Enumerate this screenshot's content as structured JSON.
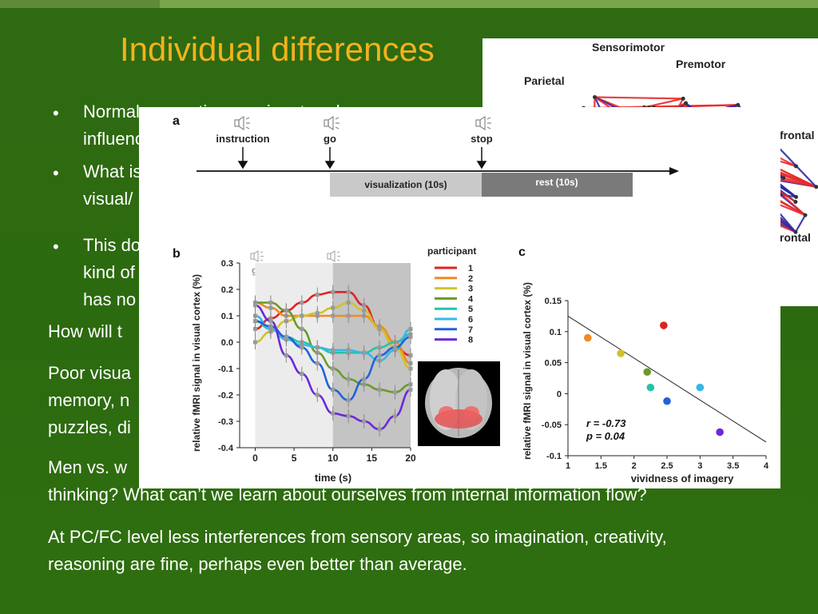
{
  "slide": {
    "title": "Individual differences",
    "bullets": [
      {
        "line1": "Normal perception requires top-down",
        "line2": "influences"
      },
      {
        "line1": "What is",
        "line2": "visual/"
      },
      {
        "line1": "This do",
        "line2": "kind of",
        "line3": "has no"
      }
    ],
    "paragraphs": [
      {
        "lines": [
          "How will t"
        ]
      },
      {
        "lines": [
          "Poor visua",
          "memory, n",
          "puzzles, di"
        ]
      },
      {
        "lines": [
          "Men vs. w",
          "thinking? What can’t we learn about ourselves from internal information flow?"
        ]
      },
      {
        "lines": [
          "At PC/FC level less interferences from sensory areas, so imagination, creativity,",
          "reasoning are fine, perhaps even better than average."
        ]
      }
    ]
  },
  "network_figure": {
    "labels": [
      "Sensorimotor",
      "Premotor",
      "Parietal",
      "frontal",
      "rontal"
    ],
    "colors": {
      "red": "#e82a2a",
      "blue": "#2a2aa8"
    }
  },
  "panel_a": {
    "label": "a",
    "events": [
      "instruction",
      "go",
      "stop"
    ],
    "bars": [
      "visualization (10s)",
      "rest (10s)"
    ]
  },
  "panel_b": {
    "label": "b",
    "ylabel": "relative fMRI signal in visual cortex (%)",
    "xlabel": "time (s)",
    "go_label": "go",
    "stop_label": "stop",
    "legend_title": "participant"
  },
  "panel_c": {
    "label": "c",
    "ylabel": "relative fMRI signal in visual cortex (%)",
    "xlabel": "vividness of imagery",
    "r_text": "r = -0.73",
    "p_text": "p = 0.04"
  },
  "chart_data": [
    {
      "type": "line",
      "x": [
        0,
        2,
        4,
        6,
        8,
        10,
        12,
        14,
        16,
        18,
        20
      ],
      "xlim": [
        -2,
        20
      ],
      "ylim": [
        -0.4,
        0.3
      ],
      "xticks": [
        0,
        5,
        10,
        15,
        20
      ],
      "yticks": [
        "0.3",
        "0.2",
        "0.1",
        "0.0",
        "-0.1",
        "-0.2",
        "-0.3",
        "-0.4"
      ],
      "series": [
        {
          "name": "1",
          "color": "#e02222",
          "values": [
            0.05,
            0.09,
            0.12,
            0.15,
            0.18,
            0.19,
            0.19,
            0.14,
            0.05,
            -0.02,
            -0.05
          ]
        },
        {
          "name": "2",
          "color": "#f08a22",
          "values": [
            0.15,
            0.13,
            0.1,
            0.1,
            0.1,
            0.1,
            0.1,
            0.1,
            0.06,
            0.0,
            -0.08
          ]
        },
        {
          "name": "3",
          "color": "#cfc32a",
          "values": [
            0.0,
            0.04,
            0.08,
            0.1,
            0.11,
            0.13,
            0.15,
            0.12,
            0.05,
            -0.02,
            -0.1
          ]
        },
        {
          "name": "4",
          "color": "#6a9a28",
          "values": [
            0.15,
            0.15,
            0.12,
            0.05,
            -0.04,
            -0.1,
            -0.14,
            -0.16,
            -0.18,
            -0.19,
            -0.16
          ]
        },
        {
          "name": "5",
          "color": "#22c4a8",
          "values": [
            0.08,
            0.05,
            0.02,
            0.0,
            -0.02,
            -0.04,
            -0.04,
            -0.04,
            -0.02,
            0.0,
            0.03
          ]
        },
        {
          "name": "6",
          "color": "#33b8e8",
          "values": [
            0.1,
            0.05,
            0.01,
            -0.01,
            -0.02,
            -0.03,
            -0.03,
            -0.04,
            -0.07,
            -0.03,
            0.05
          ]
        },
        {
          "name": "7",
          "color": "#2262d8",
          "values": [
            0.08,
            0.06,
            0.02,
            -0.02,
            -0.08,
            -0.18,
            -0.22,
            -0.14,
            -0.05,
            -0.02,
            0.02
          ]
        },
        {
          "name": "8",
          "color": "#6a2ad8",
          "values": [
            0.14,
            0.08,
            -0.05,
            -0.12,
            -0.2,
            -0.27,
            -0.28,
            -0.3,
            -0.33,
            -0.28,
            -0.18
          ]
        }
      ]
    },
    {
      "type": "scatter",
      "xlim": [
        1,
        4
      ],
      "ylim": [
        -0.1,
        0.15
      ],
      "xticks": [
        "1",
        "1.5",
        "2",
        "2.5",
        "3",
        "3.5",
        "4"
      ],
      "yticks": [
        "0.15",
        "0.1",
        "0.05",
        "0",
        "-0.05",
        "-0.1"
      ],
      "points": [
        {
          "name": "1",
          "x": 2.45,
          "y": 0.11,
          "color": "#e02222"
        },
        {
          "name": "2",
          "x": 1.3,
          "y": 0.09,
          "color": "#f08a22"
        },
        {
          "name": "3",
          "x": 1.8,
          "y": 0.065,
          "color": "#cfc32a"
        },
        {
          "name": "4",
          "x": 2.2,
          "y": 0.035,
          "color": "#6a9a28"
        },
        {
          "name": "5",
          "x": 2.25,
          "y": 0.01,
          "color": "#22c4a8"
        },
        {
          "name": "6",
          "x": 3.0,
          "y": 0.01,
          "color": "#33b8e8"
        },
        {
          "name": "7",
          "x": 2.5,
          "y": -0.012,
          "color": "#2262d8"
        },
        {
          "name": "8",
          "x": 3.3,
          "y": -0.062,
          "color": "#6a2ad8"
        }
      ],
      "fit_line": {
        "x": [
          1,
          4
        ],
        "y": [
          0.125,
          -0.078
        ]
      }
    }
  ]
}
